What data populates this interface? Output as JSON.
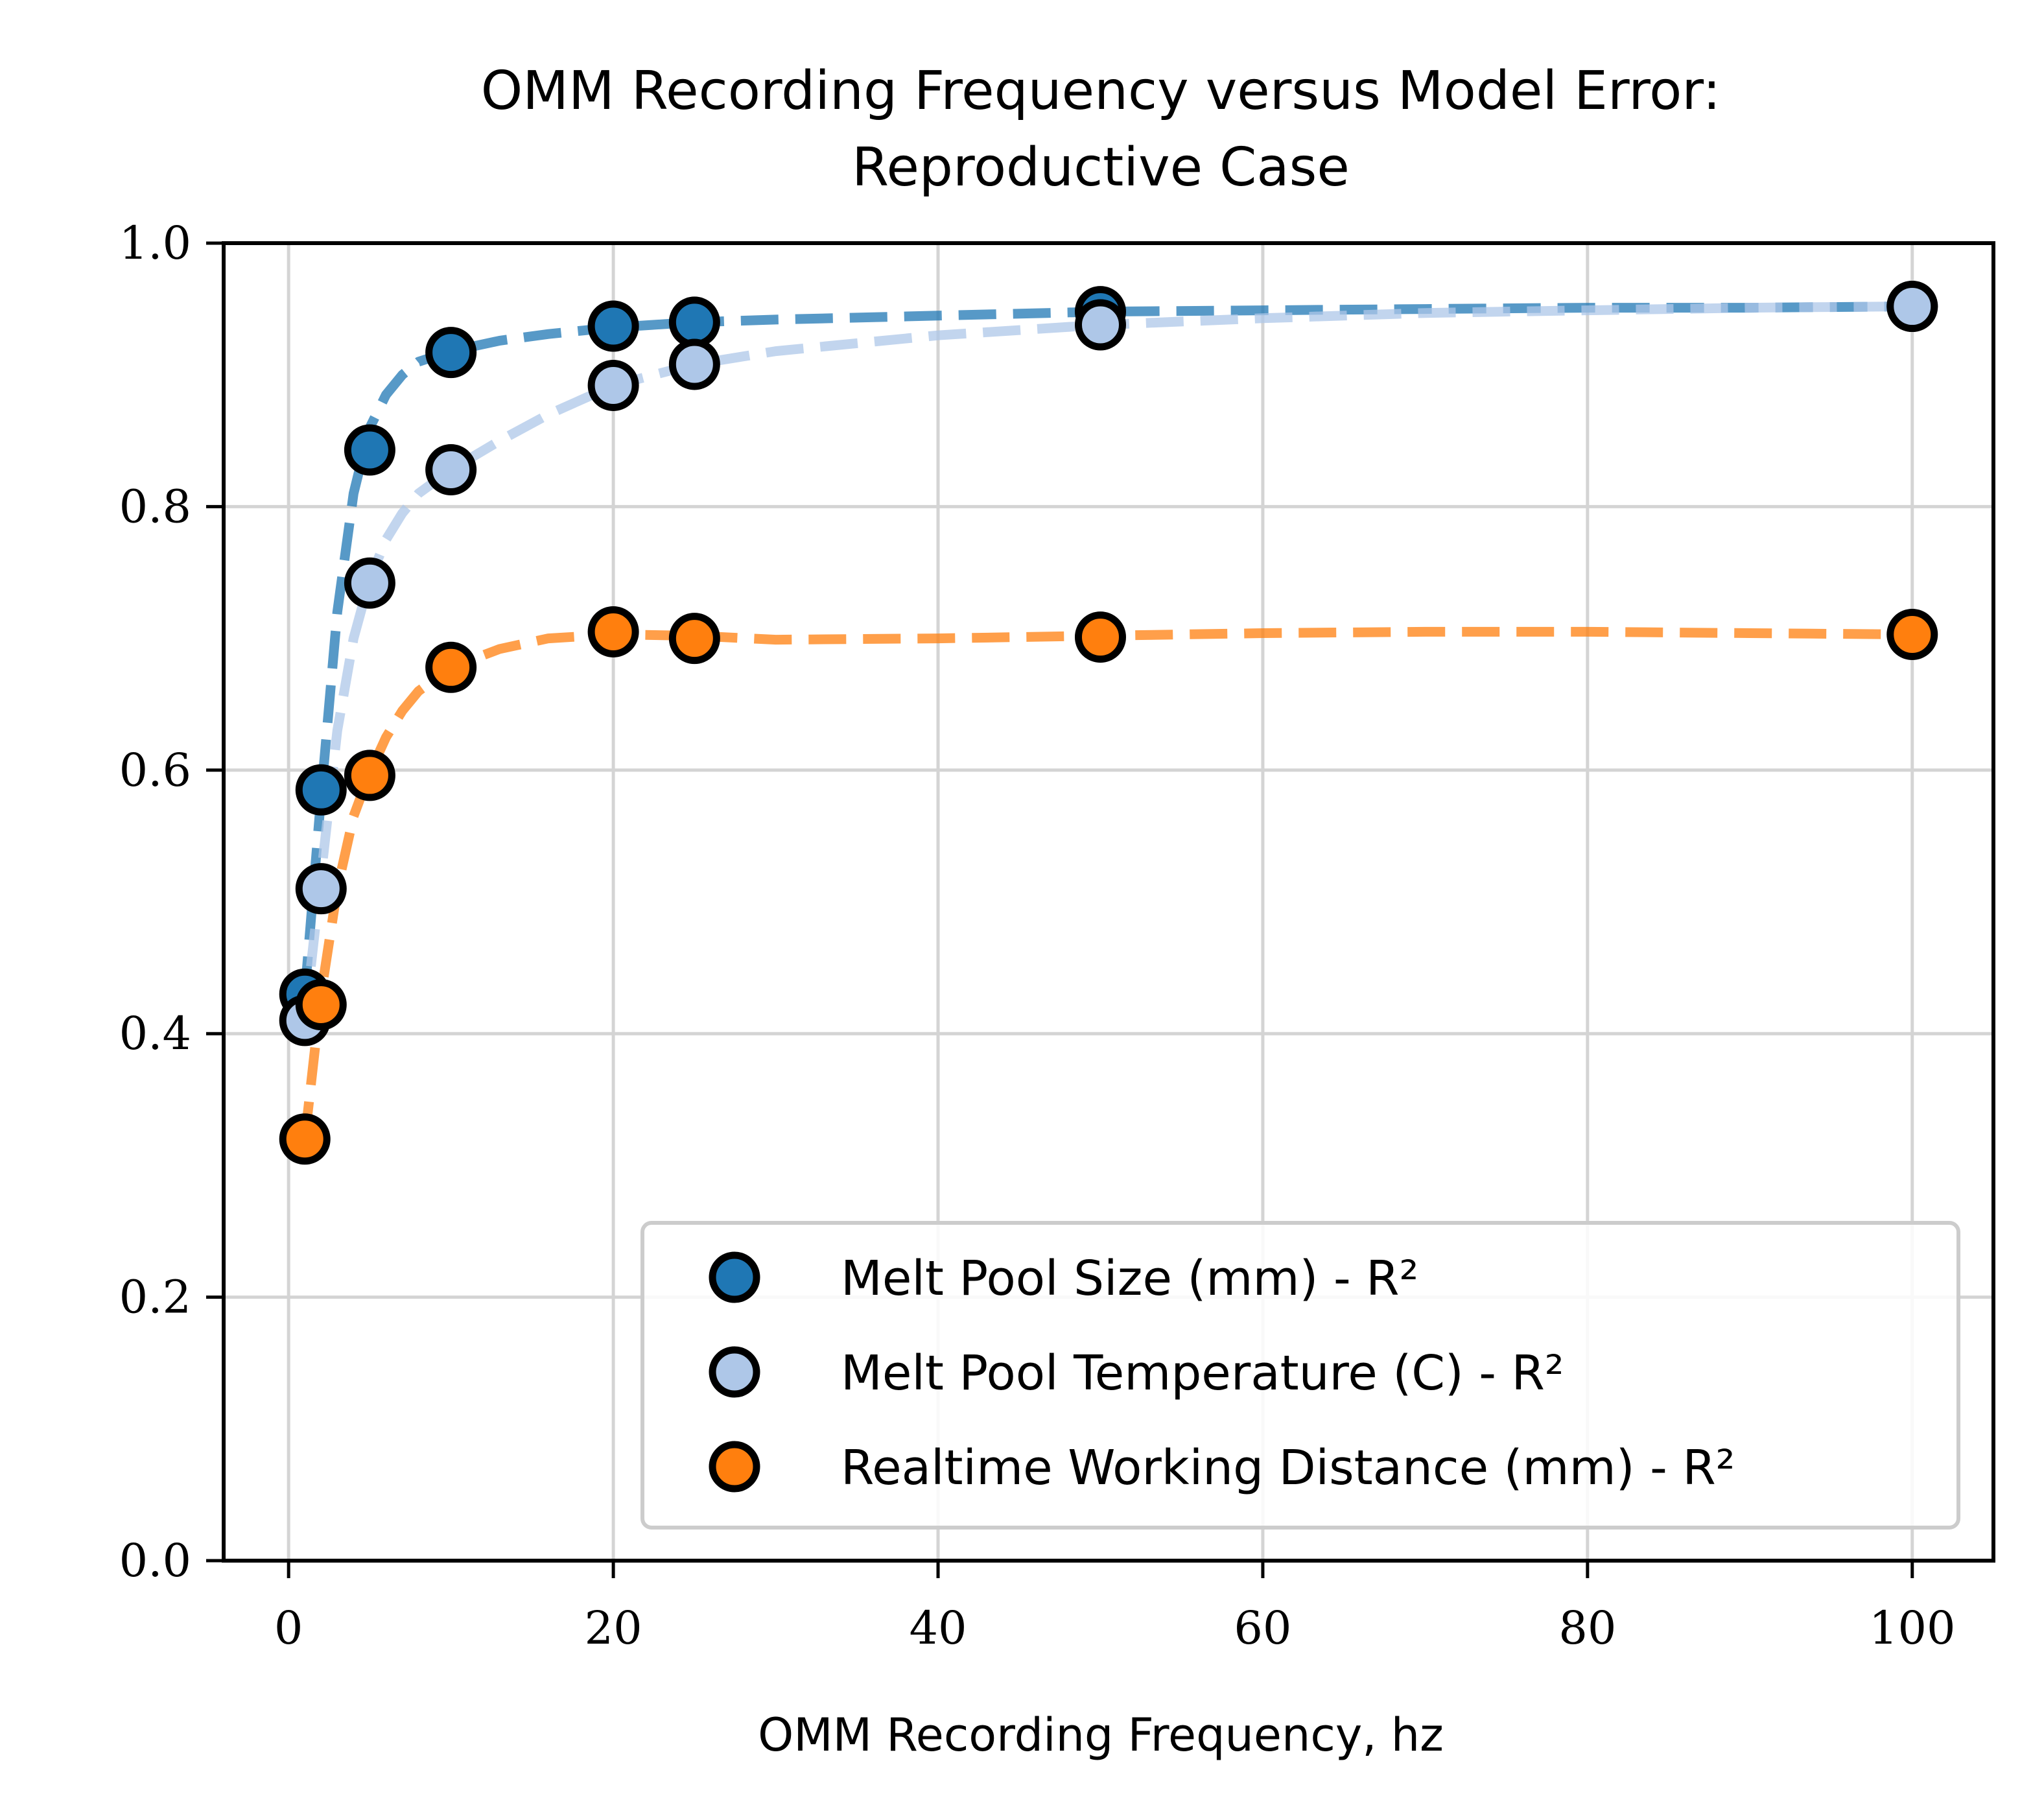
{
  "chart_data": {
    "type": "scatter",
    "title_lines": [
      "OMM Recording Frequency versus Model Error:",
      "Reproductive Case"
    ],
    "xlabel": "OMM Recording Frequency, hz",
    "ylabel": "",
    "xlim": [
      -4,
      105
    ],
    "ylim": [
      0.0,
      1.0
    ],
    "xticks": [
      0,
      20,
      40,
      60,
      80,
      100
    ],
    "xtick_labels": [
      "0",
      "20",
      "40",
      "60",
      "80",
      "100"
    ],
    "yticks": [
      0.0,
      0.2,
      0.4,
      0.6,
      0.8,
      1.0
    ],
    "ytick_labels": [
      "0.0",
      "0.2",
      "0.4",
      "0.6",
      "0.8",
      "1.0"
    ],
    "grid": true,
    "legend_position": "lower-right",
    "x": [
      1,
      2,
      5,
      10,
      20,
      25,
      50,
      100
    ],
    "series": [
      {
        "name": "Melt Pool Size (mm) - R²",
        "color": "#1f77b4",
        "values": [
          0.43,
          0.585,
          0.843,
          0.917,
          0.937,
          0.94,
          0.948,
          0.952
        ],
        "trend": [
          [
            1,
            0.43
          ],
          [
            2,
            0.58
          ],
          [
            3,
            0.72
          ],
          [
            4,
            0.81
          ],
          [
            5,
            0.86
          ],
          [
            6,
            0.885
          ],
          [
            7,
            0.9
          ],
          [
            8,
            0.91
          ],
          [
            10,
            0.918
          ],
          [
            13,
            0.926
          ],
          [
            16,
            0.931
          ],
          [
            20,
            0.936
          ],
          [
            25,
            0.94
          ],
          [
            30,
            0.942
          ],
          [
            40,
            0.945
          ],
          [
            50,
            0.948
          ],
          [
            60,
            0.949
          ],
          [
            70,
            0.95
          ],
          [
            80,
            0.951
          ],
          [
            90,
            0.951
          ],
          [
            100,
            0.952
          ]
        ]
      },
      {
        "name": "Melt Pool Temperature (C) - R²",
        "color": "#aec7e8",
        "values": [
          0.41,
          0.51,
          0.742,
          0.828,
          0.892,
          0.908,
          0.938,
          0.952
        ],
        "trend": [
          [
            1,
            0.41
          ],
          [
            2,
            0.52
          ],
          [
            3,
            0.63
          ],
          [
            4,
            0.7
          ],
          [
            5,
            0.745
          ],
          [
            6,
            0.775
          ],
          [
            7,
            0.795
          ],
          [
            8,
            0.81
          ],
          [
            10,
            0.828
          ],
          [
            13,
            0.85
          ],
          [
            16,
            0.87
          ],
          [
            20,
            0.892
          ],
          [
            25,
            0.908
          ],
          [
            30,
            0.918
          ],
          [
            40,
            0.93
          ],
          [
            50,
            0.938
          ],
          [
            60,
            0.943
          ],
          [
            70,
            0.947
          ],
          [
            80,
            0.949
          ],
          [
            90,
            0.951
          ],
          [
            100,
            0.952
          ]
        ]
      },
      {
        "name": "Realtime Working Distance (mm) - R²",
        "color": "#ff7f0e",
        "values": [
          0.32,
          0.422,
          0.596,
          0.678,
          0.705,
          0.7,
          0.701,
          0.703
        ],
        "trend": [
          [
            1,
            0.32
          ],
          [
            2,
            0.43
          ],
          [
            3,
            0.51
          ],
          [
            4,
            0.565
          ],
          [
            5,
            0.598
          ],
          [
            6,
            0.625
          ],
          [
            7,
            0.645
          ],
          [
            8,
            0.66
          ],
          [
            10,
            0.678
          ],
          [
            13,
            0.692
          ],
          [
            16,
            0.7
          ],
          [
            20,
            0.703
          ],
          [
            25,
            0.702
          ],
          [
            30,
            0.699
          ],
          [
            40,
            0.7
          ],
          [
            50,
            0.702
          ],
          [
            60,
            0.704
          ],
          [
            70,
            0.705
          ],
          [
            80,
            0.705
          ],
          [
            90,
            0.704
          ],
          [
            100,
            0.703
          ]
        ]
      }
    ]
  }
}
